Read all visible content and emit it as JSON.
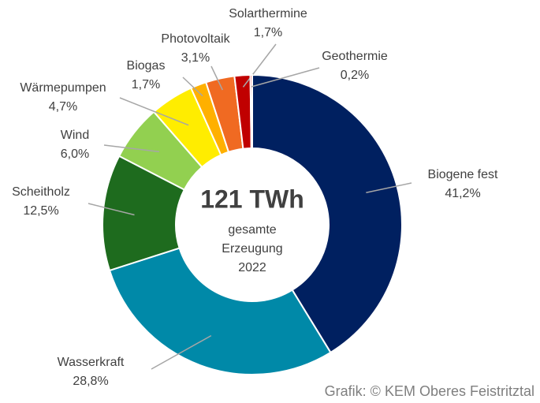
{
  "chart_data": {
    "type": "donut",
    "categories": [
      "Biogene fest",
      "Wasserkraft",
      "Scheitholz",
      "Wind",
      "Wärmepumpen",
      "Biogas",
      "Photovoltaik",
      "Solarthermine",
      "Geothermie"
    ],
    "values": [
      41.2,
      28.8,
      12.5,
      6.0,
      4.7,
      1.7,
      3.1,
      1.7,
      0.2
    ],
    "value_labels": [
      "41,2%",
      "28,8%",
      "12,5%",
      "6,0%",
      "4,7%",
      "1,7%",
      "3,1%",
      "1,7%",
      "0,2%"
    ],
    "colors": [
      "#002060",
      "#0089a8",
      "#1e6b1e",
      "#92d050",
      "#ffed00",
      "#ffb000",
      "#f06a22",
      "#c00000",
      "#e00000"
    ],
    "center_text": [
      "121 TWh",
      "gesamte",
      "Erzeugung",
      "2022"
    ],
    "credit": "Grafik: © KEM Oberes Feistritztal"
  }
}
